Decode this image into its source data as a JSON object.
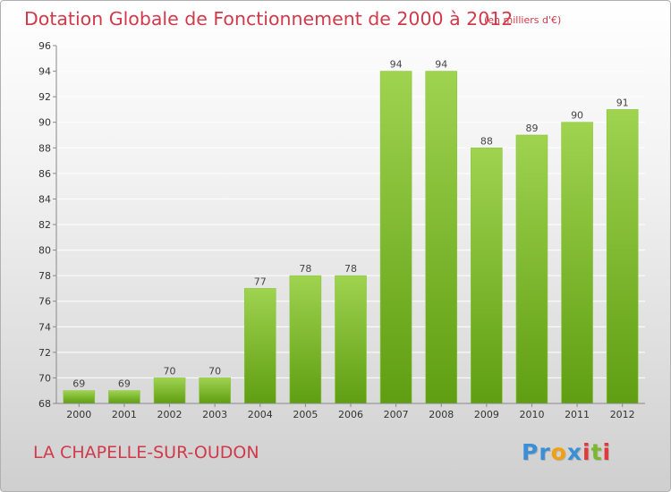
{
  "chart_data": {
    "type": "bar",
    "title": "Dotation Globale de Fonctionnement de 2000 à 2012",
    "unit_label": "(en milliers d'€)",
    "xlabel": "",
    "ylabel": "",
    "categories": [
      "2000",
      "2001",
      "2002",
      "2003",
      "2004",
      "2005",
      "2006",
      "2007",
      "2008",
      "2009",
      "2010",
      "2011",
      "2012"
    ],
    "values": [
      69,
      69,
      70,
      70,
      77,
      78,
      78,
      94,
      94,
      88,
      89,
      90,
      91
    ],
    "data_labels": [
      "69",
      "69",
      "70",
      "70",
      "77",
      "78",
      "78",
      "94",
      "94",
      "88",
      "89",
      "90",
      "91"
    ],
    "ylim": [
      68,
      96
    ],
    "yticks": [
      68,
      70,
      72,
      74,
      76,
      78,
      80,
      82,
      84,
      86,
      88,
      90,
      92,
      94,
      96
    ],
    "ytick_labels": [
      "68",
      "70",
      "72",
      "74",
      "76",
      "78",
      "80",
      "82",
      "84",
      "86",
      "88",
      "90",
      "92",
      "94",
      "96"
    ],
    "grid": true,
    "bar_color_top": "#9fd350",
    "bar_color_bottom": "#5f9e12"
  },
  "footer": {
    "commune": "LA CHAPELLE-SUR-OUDON",
    "brand": "Proxiti",
    "brand_letters": [
      {
        "ch": "P",
        "color": "#3a8fd6"
      },
      {
        "ch": "r",
        "color": "#3a8fd6"
      },
      {
        "ch": "o",
        "color": "#f0a010"
      },
      {
        "ch": "x",
        "color": "#3a8fd6"
      },
      {
        "ch": "i",
        "color": "#e03a3a"
      },
      {
        "ch": "t",
        "color": "#7cb82f"
      },
      {
        "ch": "i",
        "color": "#e03a3a"
      }
    ]
  },
  "colors": {
    "title": "#d03a4a",
    "grid": "#ffffff",
    "axis": "#888888"
  }
}
